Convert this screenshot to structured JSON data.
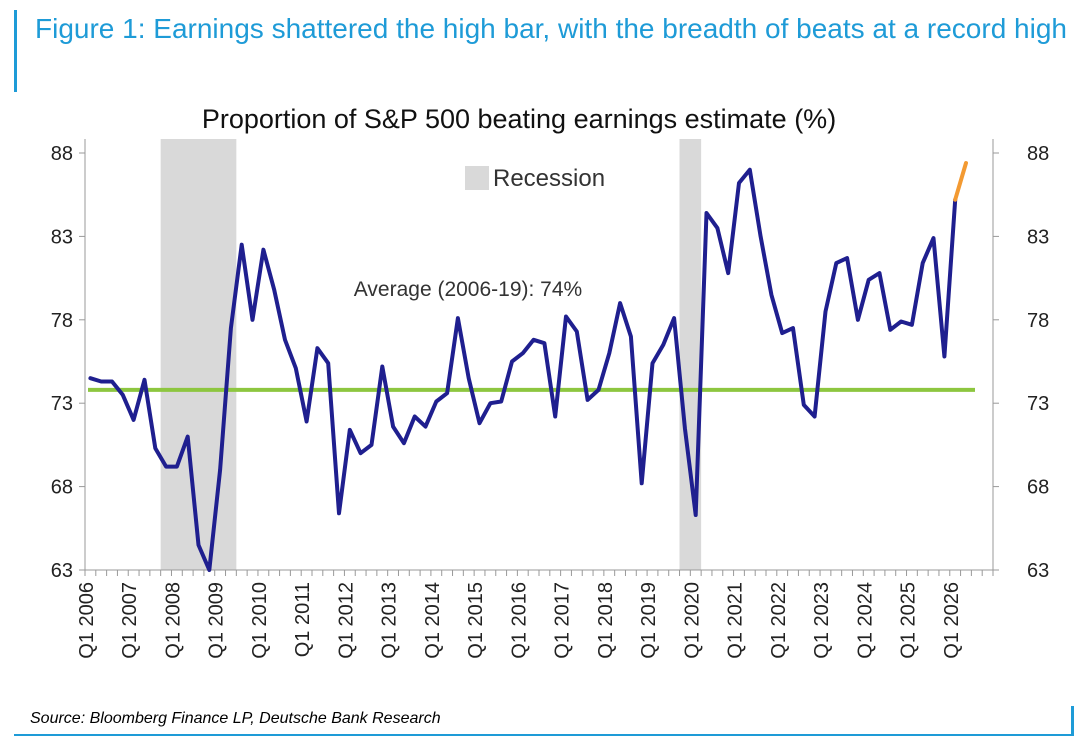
{
  "figure_title": "Figure 1: Earnings shattered the high bar, with the breadth of beats at a record high",
  "source": "Source: Bloomberg Finance LP, Deutsche Bank Research",
  "chart_data": {
    "type": "line",
    "title": "Proportion of S&P 500 beating earnings estimate (%)",
    "xlabel": "",
    "ylabel": "",
    "ylim": [
      63,
      88
    ],
    "yticks": [
      63,
      68,
      73,
      78,
      83,
      88
    ],
    "x_tick_labels": [
      "Q1 2006",
      "Q1 2007",
      "Q1 2008",
      "Q1 2009",
      "Q1 2010",
      "Q1 2011",
      "Q1 2012",
      "Q1 2013",
      "Q1 2014",
      "Q1 2015",
      "Q1 2016",
      "Q1 2017",
      "Q1 2018",
      "Q1 2019",
      "Q1 2020",
      "Q1 2021",
      "Q1 2022",
      "Q1 2023",
      "Q1 2024",
      "Q1 2025",
      "Q1 2026"
    ],
    "start": "Q1 2006",
    "legend": {
      "label": "Recession",
      "color": "#d9d9d9",
      "position": "top-center"
    },
    "recessions": [
      [
        "Q4 2007",
        "Q2 2009"
      ],
      [
        "Q4 2019",
        "Q1 2020"
      ]
    ],
    "average": {
      "label": "Average (2006-19): 74%",
      "value": 73.8,
      "color": "#8dc63f"
    },
    "series": [
      {
        "color": "#1f1f8f",
        "values": [
          74.5,
          74.3,
          74.3,
          73.5,
          72.0,
          74.4,
          70.3,
          69.2,
          69.2,
          71.0,
          64.5,
          63.0,
          69.0,
          77.5,
          82.5,
          78.0,
          82.2,
          79.8,
          76.8,
          75.1,
          71.9,
          76.3,
          75.4,
          66.4,
          71.4,
          70.0,
          70.5,
          75.2,
          71.6,
          70.6,
          72.2,
          71.6,
          73.1,
          73.6,
          78.1,
          74.5,
          71.8,
          73.0,
          73.1,
          75.5,
          76.0,
          76.8,
          76.6,
          72.2,
          78.2,
          77.3,
          73.2,
          73.8,
          76.0,
          79.0,
          77.0,
          68.2,
          75.4,
          76.5,
          78.1,
          71.5,
          66.3,
          84.4,
          83.5,
          80.8,
          86.2,
          87.0,
          83.0,
          79.5,
          77.2,
          77.5,
          72.9,
          72.2,
          78.5,
          81.4,
          81.7,
          78.0,
          80.4,
          80.8,
          77.4,
          77.9,
          77.7,
          81.4,
          82.9,
          75.8,
          85.2
        ]
      },
      {
        "color": "#f39a32",
        "values_from_index": 80,
        "values": [
          85.2,
          87.4
        ]
      }
    ]
  }
}
